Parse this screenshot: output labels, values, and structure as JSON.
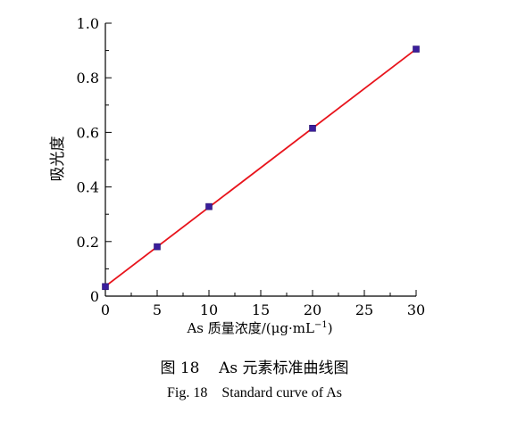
{
  "chart_data": {
    "type": "line",
    "xlabel": "As 质量浓度/(μg·mL",
    "xlabel_sup": "−1",
    "xlabel_close": ")",
    "ylabel": "吸光度",
    "xlim": [
      0,
      30
    ],
    "ylim": [
      0,
      1.0
    ],
    "xticks": [
      0,
      5,
      10,
      15,
      20,
      25,
      30
    ],
    "yticks": [
      0,
      0.2,
      0.4,
      0.6,
      0.8,
      1.0
    ],
    "xtick_labels": [
      "0",
      "5",
      "10",
      "15",
      "20",
      "25",
      "30"
    ],
    "ytick_labels": [
      "0",
      "0.2",
      "0.4",
      "0.6",
      "0.8",
      "1.0"
    ],
    "points": {
      "x": [
        0,
        5,
        10,
        20,
        30
      ],
      "y": [
        0.035,
        0.181,
        0.328,
        0.615,
        0.905
      ]
    },
    "fit_line": {
      "x": [
        0,
        30
      ],
      "y": [
        0.036,
        0.905
      ]
    },
    "grid": false,
    "colors": {
      "line": "#e8141c",
      "marker": "#3a1e9c",
      "axis": "#000000"
    }
  },
  "caption": {
    "cn_fig": "图 18",
    "cn_text": "As 元素标准曲线图",
    "en_fig": "Fig. 18",
    "en_text": "Standard curve of As"
  }
}
